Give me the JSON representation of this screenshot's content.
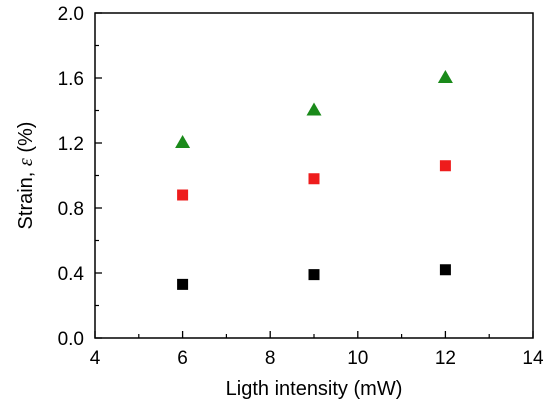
{
  "chart_data": {
    "type": "scatter",
    "title": "",
    "xlabel": "Ligth intensity (mW)",
    "ylabel": {
      "prefix": "Strain, ",
      "symbol": "ε",
      "suffix": " (%)"
    },
    "xlim": [
      4,
      14
    ],
    "ylim": [
      0.0,
      2.0
    ],
    "xticks": [
      "4",
      "6",
      "8",
      "10",
      "12",
      "14"
    ],
    "yticks": [
      "0.0",
      "0.4",
      "0.8",
      "1.2",
      "1.6",
      "2.0"
    ],
    "grid": false,
    "legend": "none",
    "series": [
      {
        "marker": "square",
        "color": "#000000",
        "points": [
          {
            "x": 6,
            "y": 0.33
          },
          {
            "x": 9,
            "y": 0.39
          },
          {
            "x": 12,
            "y": 0.42
          }
        ]
      },
      {
        "marker": "square",
        "color": "#ee1c1c",
        "points": [
          {
            "x": 6,
            "y": 0.88
          },
          {
            "x": 9,
            "y": 0.98
          },
          {
            "x": 12,
            "y": 1.06
          }
        ]
      },
      {
        "marker": "triangle",
        "color": "#1a8a1a",
        "points": [
          {
            "x": 6,
            "y": 1.2
          },
          {
            "x": 9,
            "y": 1.4
          },
          {
            "x": 12,
            "y": 1.6
          }
        ]
      }
    ]
  }
}
